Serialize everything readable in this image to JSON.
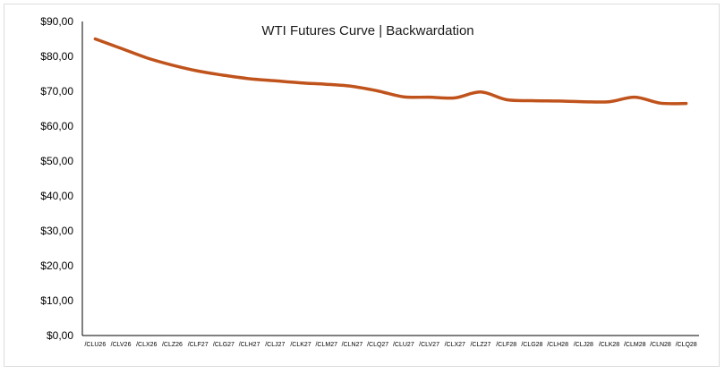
{
  "chart_data": {
    "type": "line",
    "title": "WTI Futures Curve | Backwardation",
    "xlabel": "",
    "ylabel": "",
    "ylim": [
      0,
      90
    ],
    "y_ticks": [
      0,
      10,
      20,
      30,
      40,
      50,
      60,
      70,
      80,
      90
    ],
    "y_tick_labels": [
      "$0,00",
      "$10,00",
      "$20,00",
      "$30,00",
      "$40,00",
      "$50,00",
      "$60,00",
      "$70,00",
      "$80,00",
      "$90,00"
    ],
    "categories": [
      "/CLU26",
      "/CLV26",
      "/CLX26",
      "/CLZ26",
      "/CLF27",
      "/CLG27",
      "/CLH27",
      "/CLJ27",
      "/CLK27",
      "/CLM27",
      "/CLN27",
      "/CLQ27",
      "/CLU27",
      "/CLV27",
      "/CLX27",
      "/CLZ27",
      "/CLF28",
      "/CLG28",
      "/CLH28",
      "/CLJ28",
      "/CLK28",
      "/CLM28",
      "/CLN28",
      "/CLQ28"
    ],
    "values": [
      85.0,
      82.3,
      79.6,
      77.5,
      75.8,
      74.6,
      73.6,
      73.0,
      72.4,
      72.0,
      71.4,
      70.1,
      68.4,
      68.3,
      68.1,
      69.8,
      67.6,
      67.3,
      67.2,
      67.0,
      67.0,
      68.3,
      66.6,
      66.5
    ],
    "grid": false,
    "legend": "none",
    "colors": {
      "line": "#c0531c",
      "axis": "#000000",
      "background": "#ffffff",
      "border": "#dcdcdc"
    }
  }
}
